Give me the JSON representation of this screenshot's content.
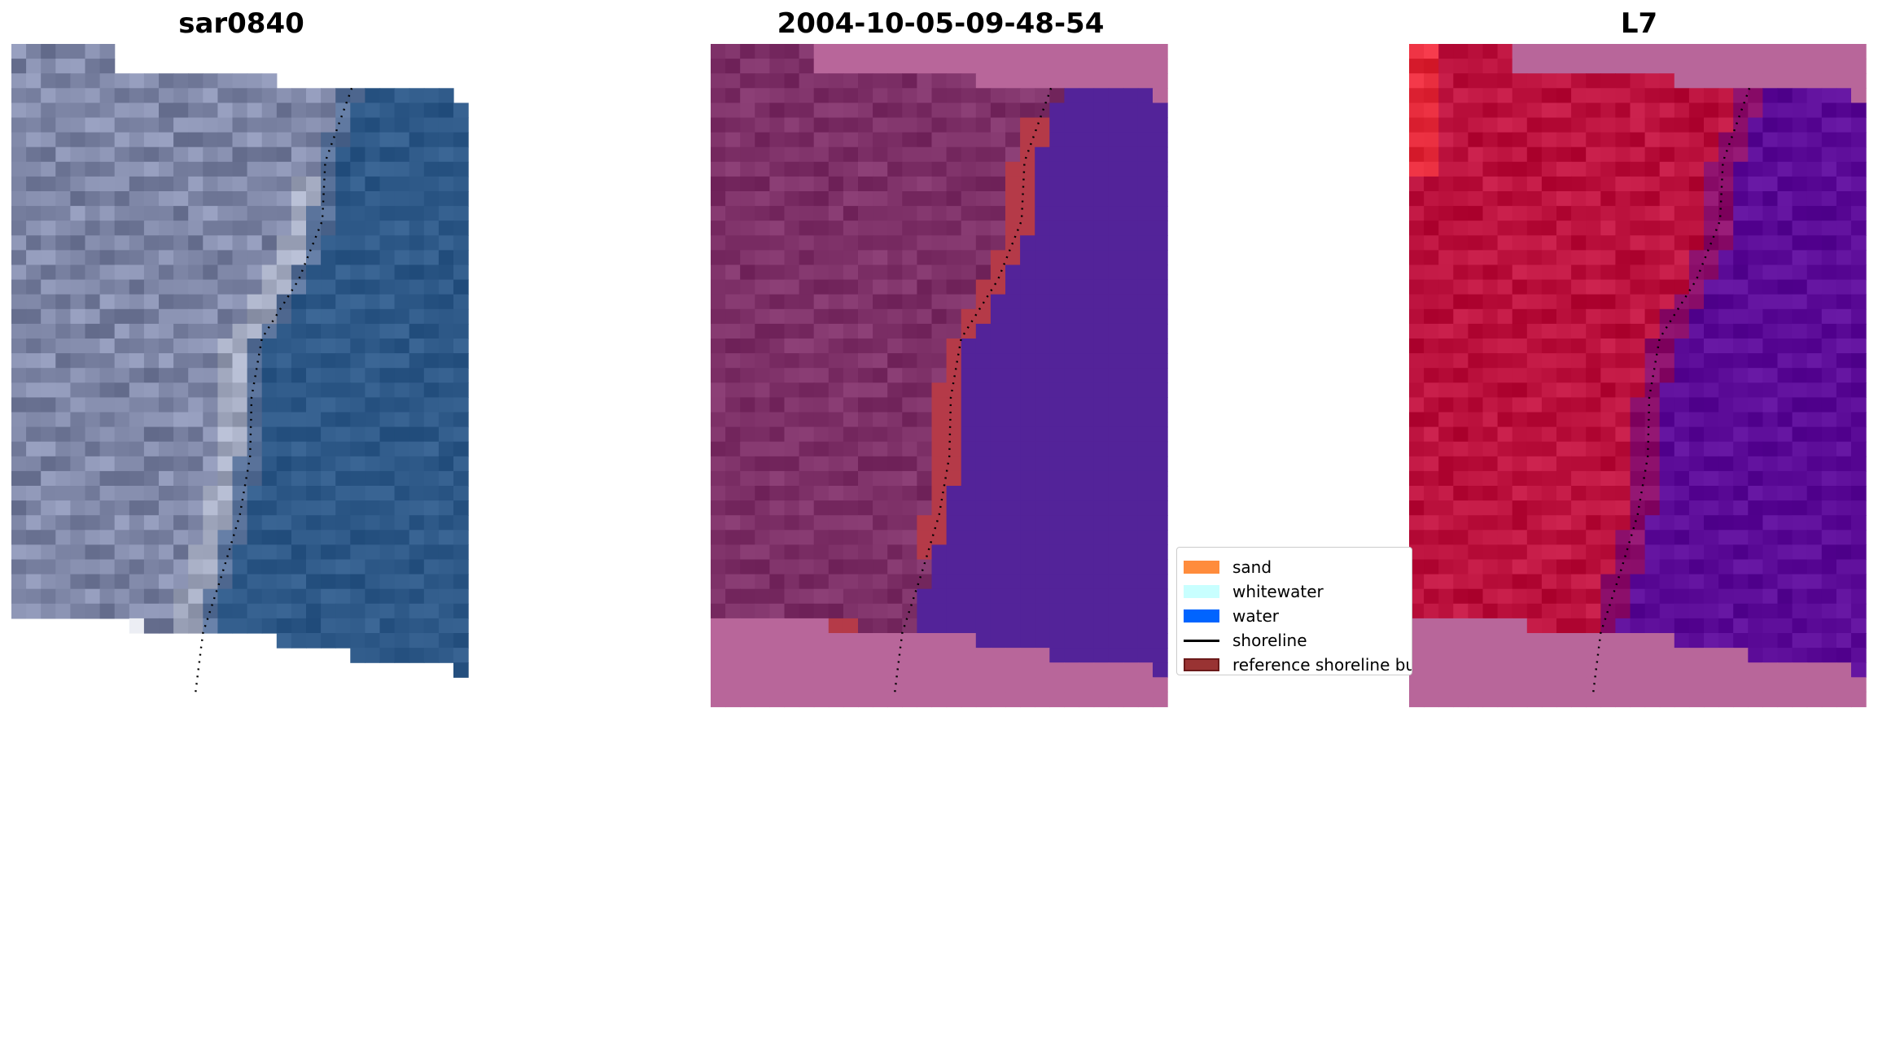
{
  "panels": [
    {
      "title": "sar0840",
      "mode": "rgb"
    },
    {
      "title": "2004-10-05-09-48-54",
      "mode": "class"
    },
    {
      "title": "L7",
      "mode": "mndwi"
    }
  ],
  "legend": {
    "items": [
      {
        "label": "sand",
        "type": "patch",
        "color": "#ff8c3c"
      },
      {
        "label": "whitewater",
        "type": "patch",
        "color": "#c8ffff"
      },
      {
        "label": "water",
        "type": "patch",
        "color": "#0064ff"
      },
      {
        "label": "shoreline",
        "type": "line",
        "color": "#000000"
      },
      {
        "label": "reference shoreline buffer",
        "type": "patch",
        "color": "#993333",
        "edge": "#6b1a1a"
      }
    ]
  },
  "colors": {
    "nodata_mask": "#b8669a",
    "land_rgb": "#8c94b4",
    "water_rgb": "#35608f",
    "land_class": "#85386f",
    "water_class": "#532399",
    "buffer": "#b53a48",
    "land_mndwi": "#c41a46",
    "water_mndwi": "#62129e"
  }
}
